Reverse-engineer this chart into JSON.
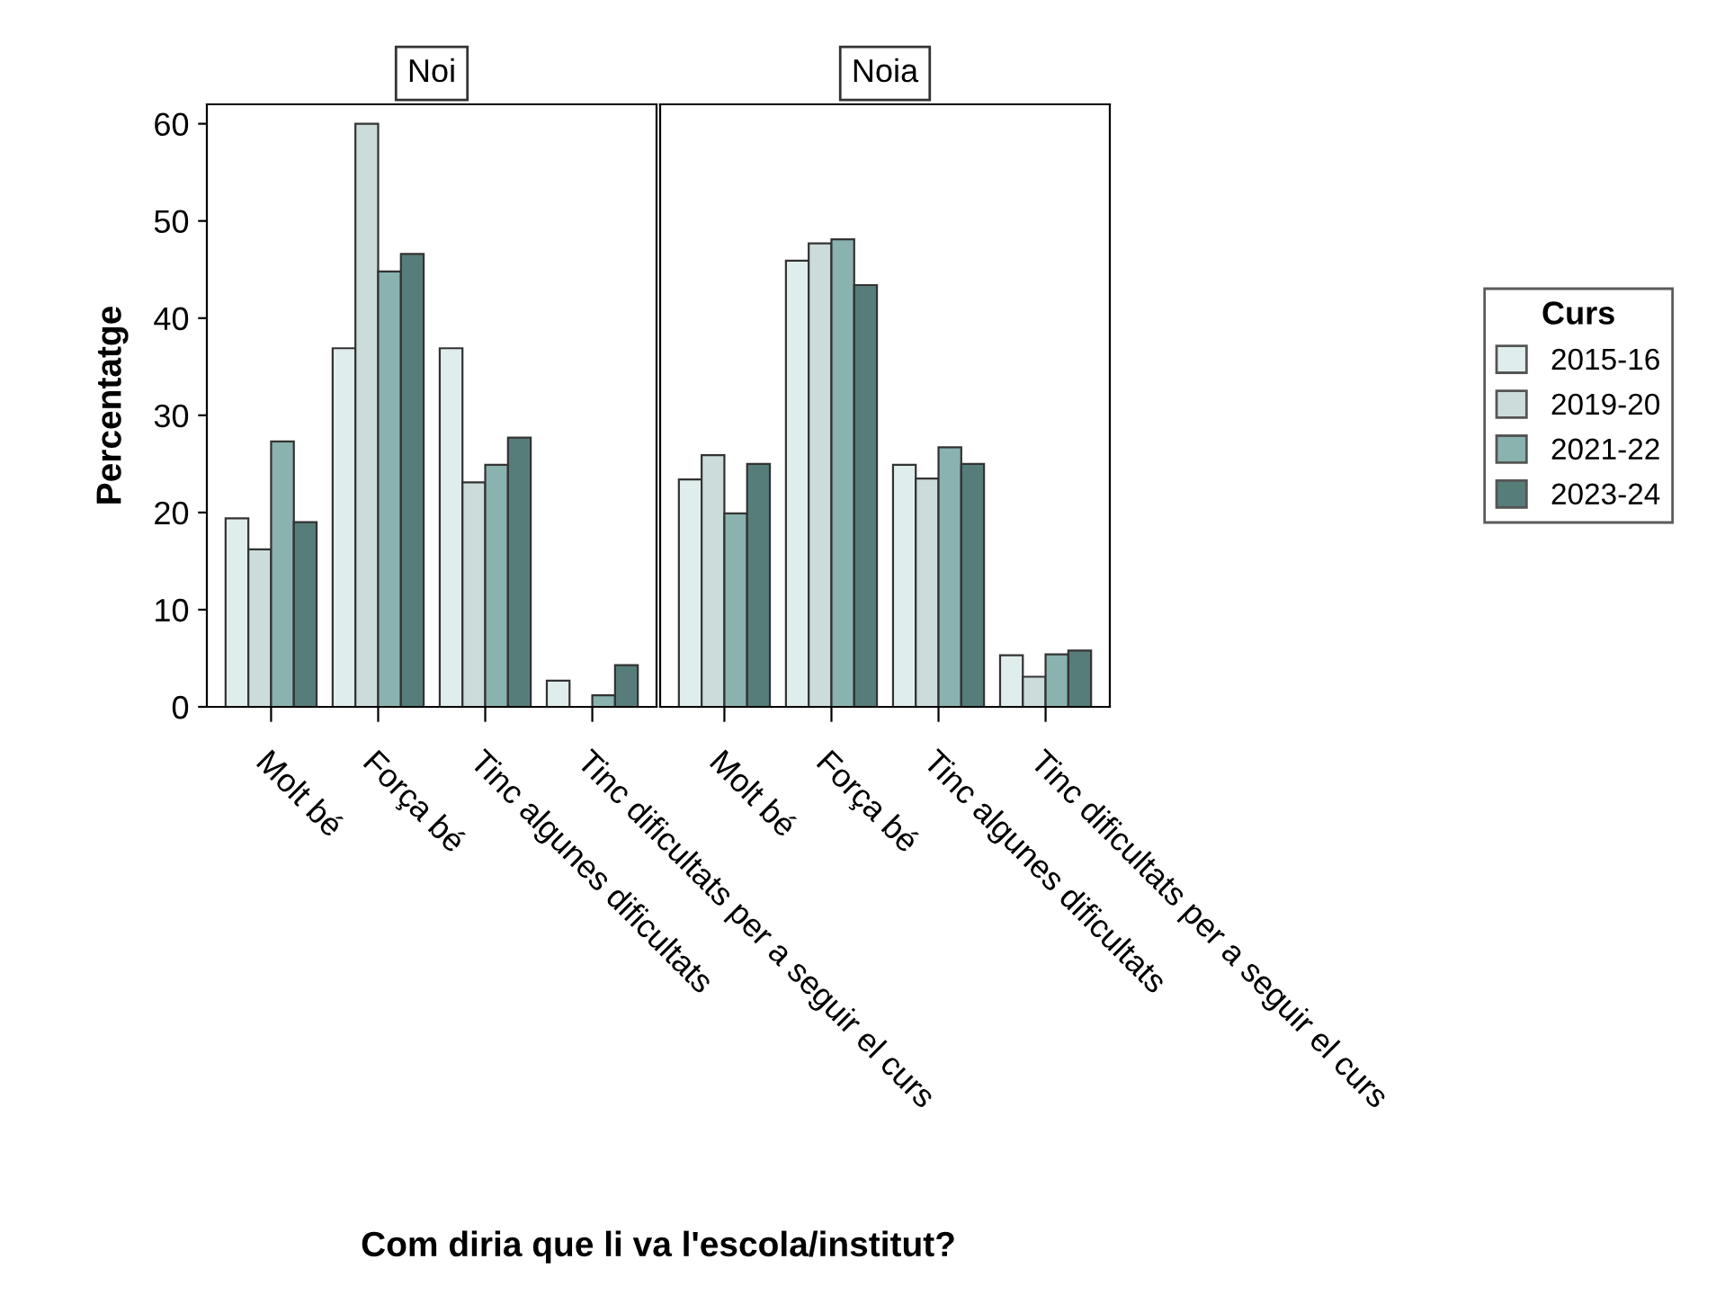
{
  "chart_data": [
    {
      "type": "bar",
      "title": "Noi",
      "ylabel": "Percentatge",
      "xlabel": "Com diria que li va l'escola/institut?",
      "categories": [
        "Molt bé",
        "Força bé",
        "Tinc algunes dificultats",
        "Tinc dificultats per a seguir el curs"
      ],
      "ylim": [
        0,
        62
      ],
      "yticks": [
        0,
        10,
        20,
        30,
        40,
        50,
        60
      ],
      "grid": false,
      "legend": "right",
      "series": [
        {
          "name": "2015-16",
          "color": "#e0eded",
          "values": [
            19.4,
            36.9,
            36.9,
            2.7
          ]
        },
        {
          "name": "2019-20",
          "color": "#cbdcdb",
          "values": [
            16.2,
            60,
            23.1,
            null
          ]
        },
        {
          "name": "2021-22",
          "color": "#8ab3b0",
          "values": [
            27.3,
            44.8,
            24.9,
            1.2
          ]
        },
        {
          "name": "2023-24",
          "color": "#577d7a",
          "values": [
            19.0,
            46.6,
            27.7,
            4.3
          ]
        }
      ]
    },
    {
      "type": "bar",
      "title": "Noia",
      "legend_title": "Curs",
      "categories": [
        "Molt bé",
        "Força bé",
        "Tinc algunes dificultats",
        "Tinc dificultats per a seguir el curs"
      ],
      "ylim": [
        0,
        62
      ],
      "tick_labels": "x",
      "grid": false,
      "legend": "right",
      "series": [
        {
          "name": "2015-16",
          "color": "#e0eded",
          "values": [
            23.4,
            45.9,
            24.9,
            5.3
          ]
        },
        {
          "name": "2019-20",
          "color": "#cbdcdb",
          "values": [
            25.9,
            47.7,
            23.5,
            3.1
          ]
        },
        {
          "name": "2021-22",
          "color": "#8ab3b0",
          "values": [
            19.9,
            48.1,
            26.7,
            5.4
          ]
        },
        {
          "name": "2023-24",
          "color": "#577d7a",
          "values": [
            25.0,
            43.4,
            25.0,
            5.8
          ]
        }
      ]
    }
  ]
}
